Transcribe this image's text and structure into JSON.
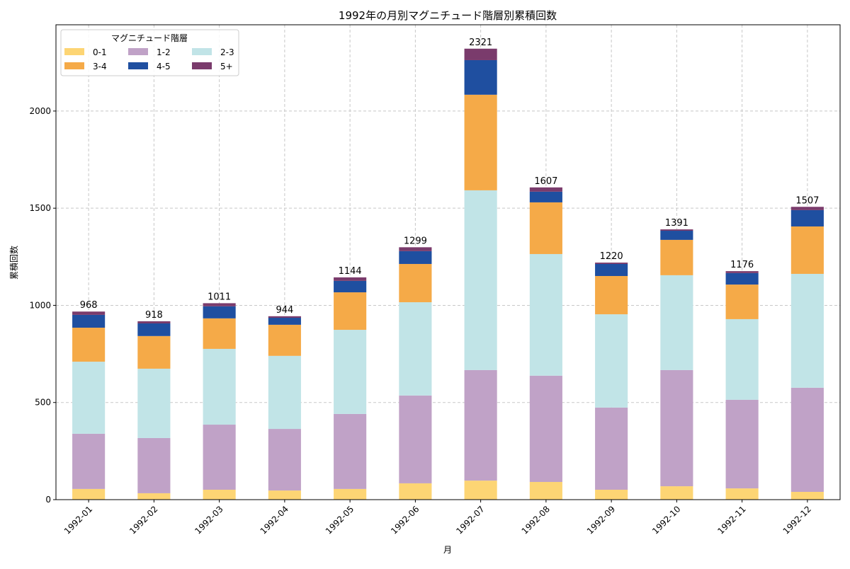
{
  "chart_data": {
    "type": "bar",
    "stacked": true,
    "title": "1992年の月別マグニチュード階層別累積回数",
    "xlabel": "月",
    "ylabel": "累積回数",
    "ylim": [
      0,
      2444
    ],
    "yticks": [
      0,
      500,
      1000,
      1500,
      2000
    ],
    "grid": true,
    "legend": {
      "title": "マグニチュード階層",
      "placement": "top-left",
      "columns": 3
    },
    "categories": [
      "1992-01",
      "1992-02",
      "1992-03",
      "1992-04",
      "1992-05",
      "1992-06",
      "1992-07",
      "1992-08",
      "1992-09",
      "1992-10",
      "1992-11",
      "1992-12"
    ],
    "series": [
      {
        "name": "0-1",
        "color": "#fdd574",
        "values": [
          55,
          33,
          51,
          47,
          55,
          84,
          98,
          91,
          51,
          69,
          58,
          40
        ]
      },
      {
        "name": "1-2",
        "color": "#c0a2c7",
        "values": [
          284,
          284,
          335,
          317,
          386,
          452,
          569,
          547,
          423,
          598,
          456,
          536
        ]
      },
      {
        "name": "2-3",
        "color": "#c1e4e7",
        "values": [
          371,
          357,
          390,
          376,
          433,
          480,
          925,
          626,
          480,
          488,
          415,
          586
        ]
      },
      {
        "name": "3-4",
        "color": "#f5aa48",
        "values": [
          175,
          168,
          157,
          160,
          193,
          197,
          492,
          266,
          197,
          182,
          178,
          244
        ]
      },
      {
        "name": "4-5",
        "color": "#1f4fa0",
        "values": [
          66,
          65,
          62,
          36,
          59,
          66,
          178,
          55,
          62,
          47,
          59,
          84
        ]
      },
      {
        "name": "5+",
        "color": "#7a3b6c",
        "values": [
          17,
          11,
          16,
          8,
          18,
          20,
          59,
          22,
          7,
          7,
          10,
          17
        ]
      }
    ],
    "totals": [
      968,
      918,
      1011,
      944,
      1144,
      1299,
      2321,
      1607,
      1220,
      1391,
      1176,
      1507
    ]
  }
}
